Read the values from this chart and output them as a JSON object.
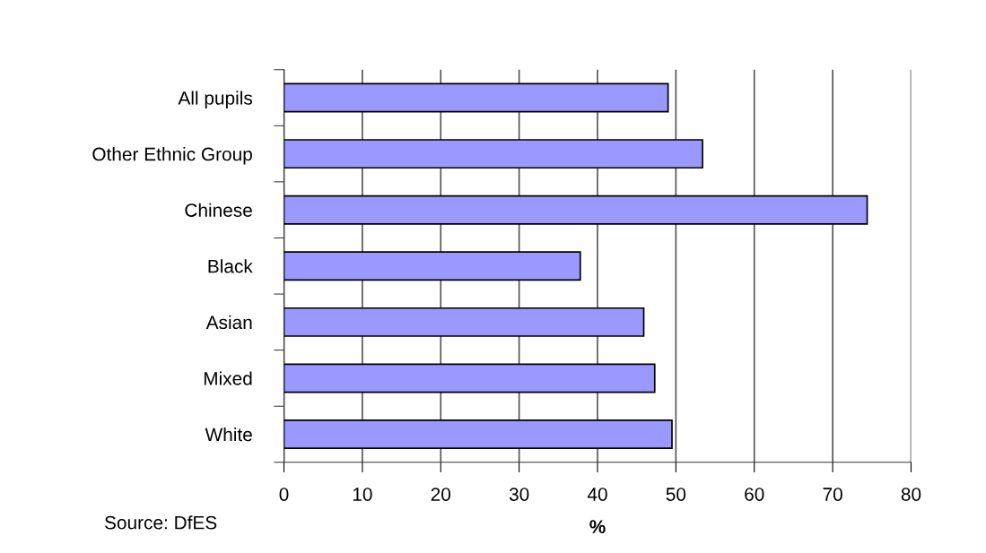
{
  "chart_data": {
    "type": "bar",
    "orientation": "horizontal",
    "xlabel": "%",
    "categories": [
      "All pupils",
      "Other Ethnic Group",
      "Chinese",
      "Black",
      "Asian",
      "Mixed",
      "White"
    ],
    "values": [
      49.0,
      53.4,
      74.4,
      37.8,
      45.9,
      47.3,
      49.5
    ],
    "color": "#9999ff",
    "xlim": [
      0,
      80
    ],
    "xticks": [
      0,
      10,
      20,
      30,
      40,
      50,
      60,
      70,
      80
    ],
    "grid": "x",
    "legend": false,
    "annotations": [
      "Source: DfES"
    ]
  }
}
